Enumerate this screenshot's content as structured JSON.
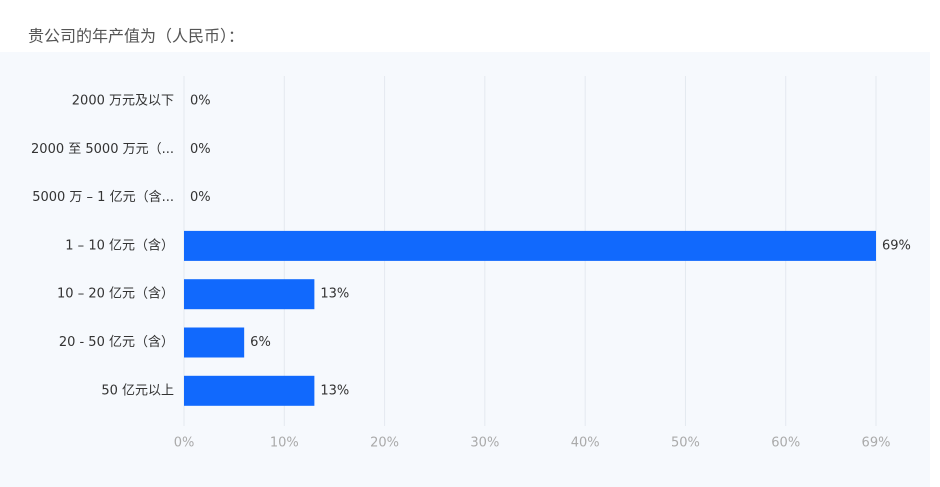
{
  "chart_data": {
    "type": "hbar",
    "title": "贵公司的年产值为（人民币）：",
    "categories": [
      "2000 万元及以下",
      "2000 至 5000 万元（...",
      "5000 万 – 1 亿元（含...",
      "1 – 10 亿元（含）",
      "10 – 20 亿元（含）",
      "20 - 50 亿元（含）",
      "50 亿元以上"
    ],
    "values": [
      0,
      0,
      0,
      69,
      13,
      6,
      13
    ],
    "value_labels": [
      "0%",
      "0%",
      "0%",
      "69%",
      "13%",
      "6%",
      "13%"
    ],
    "color": "#1169fd",
    "xlim": [
      0,
      69
    ],
    "xticks": [
      {
        "value": 0,
        "label": "0%"
      },
      {
        "value": 10,
        "label": "10%"
      },
      {
        "value": 20,
        "label": "20%"
      },
      {
        "value": 30,
        "label": "30%"
      },
      {
        "value": 40,
        "label": "40%"
      },
      {
        "value": 50,
        "label": "50%"
      },
      {
        "value": 60,
        "label": "60%"
      },
      {
        "value": 69,
        "label": "69%"
      }
    ],
    "grid": true
  }
}
